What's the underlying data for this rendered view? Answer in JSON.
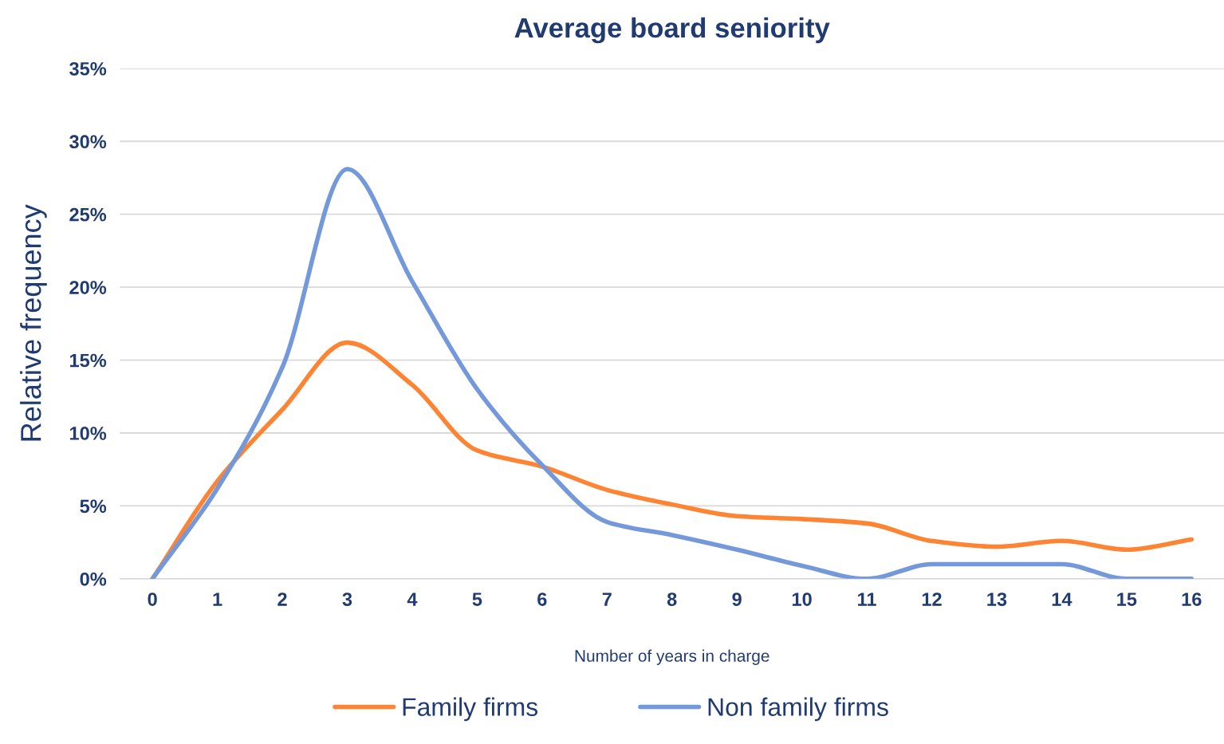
{
  "chart_data": {
    "type": "line",
    "title": "Average board seniority",
    "xlabel": "Number of years in charge",
    "ylabel": "Relative frequency",
    "categories": [
      "0",
      "1",
      "2",
      "3",
      "4",
      "5",
      "6",
      "7",
      "8",
      "9",
      "10",
      "11",
      "12",
      "13",
      "14",
      "15",
      "16"
    ],
    "series": [
      {
        "name": "Family firms",
        "color": "#fd8433",
        "values": [
          0,
          6.7,
          11.6,
          16.2,
          13.3,
          8.8,
          7.7,
          6.1,
          5.1,
          4.3,
          4.1,
          3.8,
          2.6,
          2.2,
          2.6,
          2.0,
          2.7
        ]
      },
      {
        "name": "Non family firms",
        "color": "#7499da",
        "values": [
          0,
          6.2,
          14.5,
          28.1,
          20.4,
          13.0,
          7.8,
          3.9,
          3.0,
          2.0,
          0.9,
          0,
          1.0,
          1.0,
          1.0,
          0,
          0
        ]
      }
    ],
    "ylim": [
      0,
      35
    ],
    "yticks": [
      {
        "value": 0,
        "label": "0%"
      },
      {
        "value": 5,
        "label": "5%"
      },
      {
        "value": 10,
        "label": "10%"
      },
      {
        "value": 15,
        "label": "15%"
      },
      {
        "value": 20,
        "label": "20%"
      },
      {
        "value": 25,
        "label": "25%"
      },
      {
        "value": 30,
        "label": "30%"
      },
      {
        "value": 35,
        "label": "35%"
      }
    ],
    "grid": "y",
    "legend": "bottom",
    "marker": "none",
    "line_style": "solid"
  }
}
